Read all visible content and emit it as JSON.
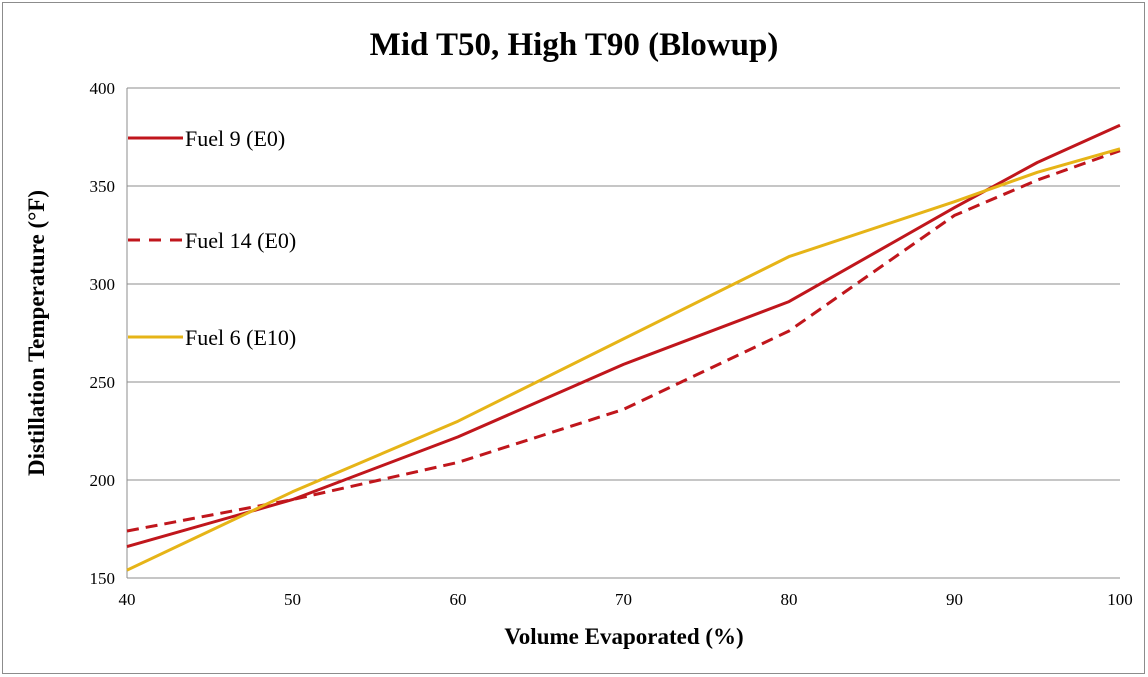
{
  "chart_data": {
    "type": "line",
    "title": "Mid T50, High T90 (Blowup)",
    "xlabel": "Volume Evaporated  (%)",
    "ylabel": "Distillation Temperature (°F)",
    "xlim": [
      40,
      100
    ],
    "ylim": [
      150,
      400
    ],
    "xticks": [
      40,
      50,
      60,
      70,
      80,
      90,
      100
    ],
    "yticks": [
      150,
      200,
      250,
      300,
      350,
      400
    ],
    "grid": "horizontal",
    "legend_position": "top-left",
    "series": [
      {
        "name": "Fuel 9 (E0)",
        "color": "#C0161C",
        "dash": "solid",
        "x": [
          40,
          50,
          60,
          70,
          80,
          90,
          95,
          100
        ],
        "y": [
          166,
          190,
          222,
          259,
          291,
          339,
          362,
          381
        ]
      },
      {
        "name": "Fuel 14 (E0)",
        "color": "#C0161C",
        "dash": "dashed",
        "x": [
          40,
          50,
          60,
          70,
          80,
          90,
          95,
          100
        ],
        "y": [
          174,
          190,
          209,
          236,
          276,
          335,
          353,
          368
        ]
      },
      {
        "name": "Fuel 6 (E10)",
        "color": "#E6B417",
        "dash": "solid",
        "x": [
          40,
          50,
          60,
          70,
          80,
          90,
          95,
          100
        ],
        "y": [
          154,
          194,
          230,
          272,
          314,
          342,
          357,
          369
        ]
      }
    ]
  }
}
